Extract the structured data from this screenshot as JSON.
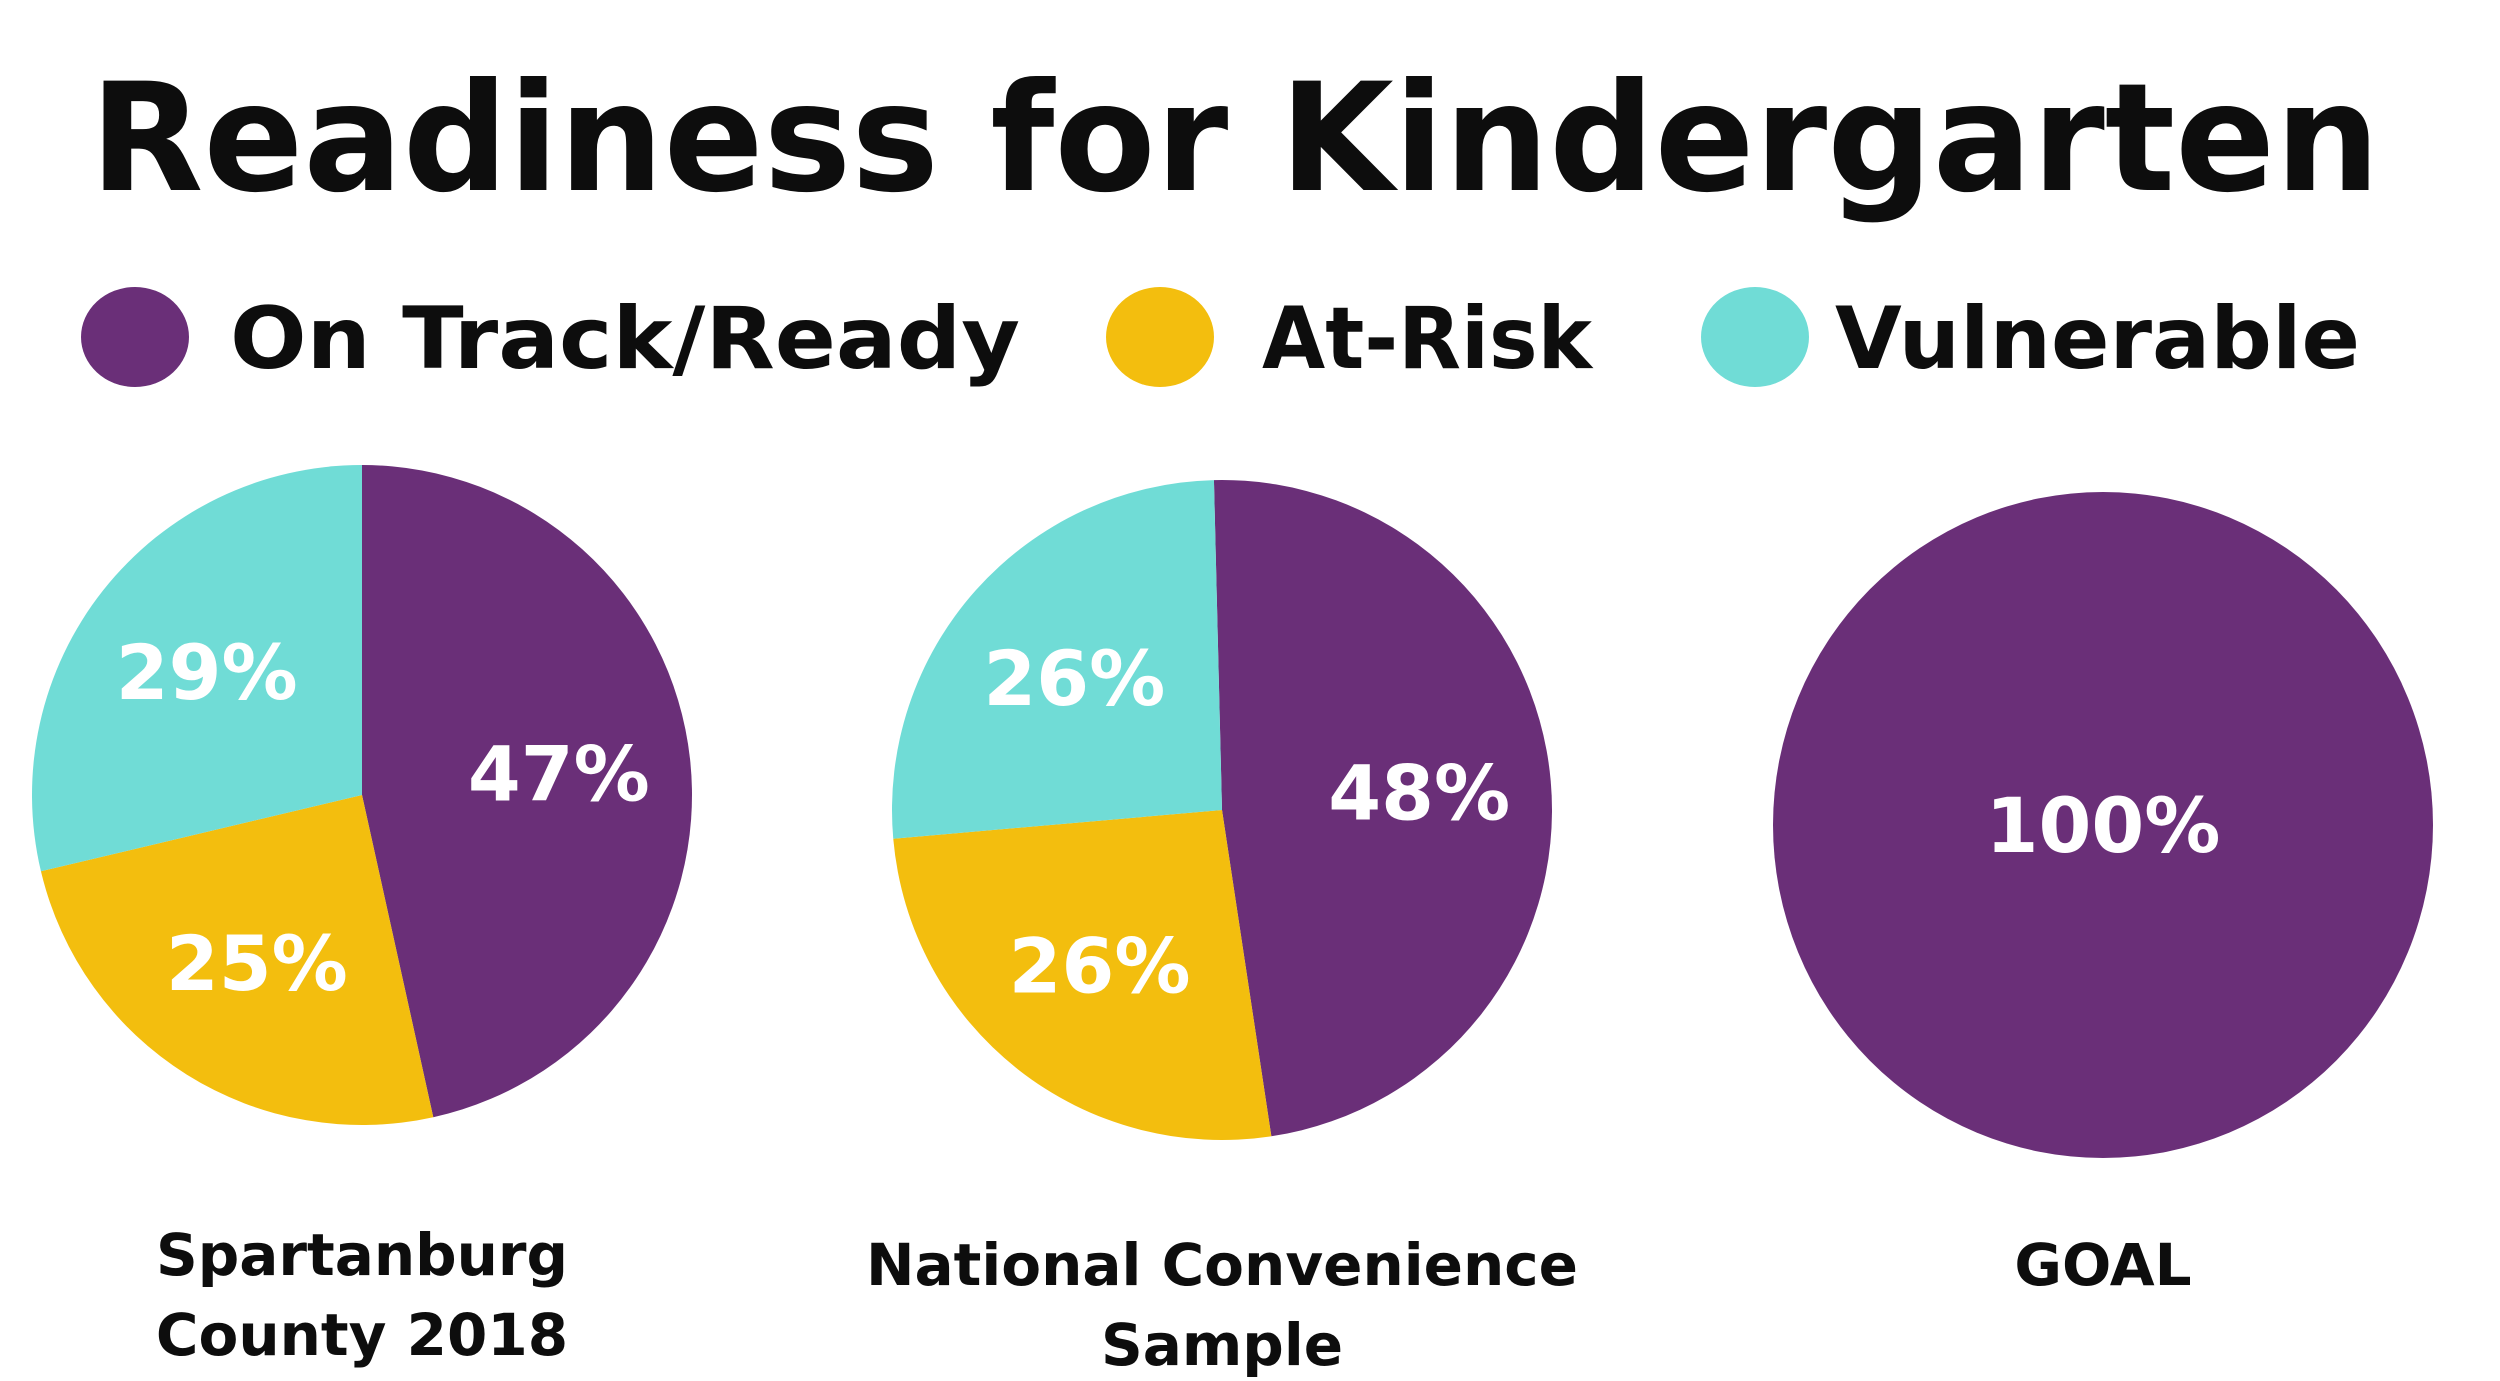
{
  "title": "Readiness for Kindergarten",
  "legend": [
    {
      "label": "On Track/Ready",
      "color": "#6a2f78"
    },
    {
      "label": "At-Risk",
      "color": "#f3be0e"
    },
    {
      "label": "Vulnerable",
      "color": "#70dcd6"
    }
  ],
  "chart_data": [
    {
      "type": "pie",
      "caption": [
        "Spartanburg",
        "County 2018"
      ],
      "slices": [
        {
          "category": "On Track/Ready",
          "value": 47,
          "label": "47%"
        },
        {
          "category": "At-Risk",
          "value": 25,
          "label": "25%"
        },
        {
          "category": "Vulnerable",
          "value": 29,
          "label": "29%"
        }
      ]
    },
    {
      "type": "pie",
      "caption": [
        "National Convenience",
        "Sample"
      ],
      "slices": [
        {
          "category": "On Track/Ready",
          "value": 48,
          "label": "48%"
        },
        {
          "category": "At-Risk",
          "value": 26,
          "label": "26%"
        },
        {
          "category": "Vulnerable",
          "value": 26,
          "label": "26%"
        }
      ]
    },
    {
      "type": "pie",
      "caption": [
        "GOAL"
      ],
      "slices": [
        {
          "category": "On Track/Ready",
          "value": 100,
          "label": "100%"
        }
      ]
    }
  ]
}
